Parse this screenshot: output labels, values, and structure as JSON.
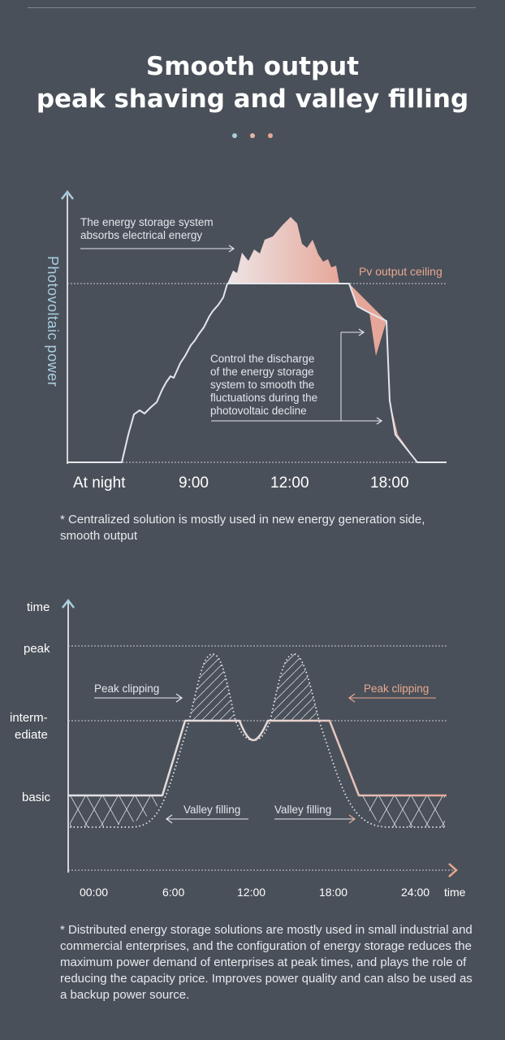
{
  "page": {
    "title_line1": "Smooth output",
    "title_line2": "peak shaving and valley filling",
    "dot_colors": [
      "#a8cde0",
      "#e8b4a4",
      "#e8a890"
    ]
  },
  "colors": {
    "background": "#4a5059",
    "pv_curve": "#dfe3e8",
    "storage_fill_start": "#ede5e6",
    "storage_fill_end": "#e6a79a",
    "salmon": "#e8a890",
    "axis": "#ffffff"
  },
  "chart_data": [
    {
      "type": "area",
      "ylabel": "Photovoltaic power",
      "xlabel": "",
      "x_ticks": [
        "At night",
        "9:00",
        "12:00",
        "18:00"
      ],
      "reference_lines": [
        {
          "label": "Pv output ceiling"
        }
      ],
      "annotations": {
        "absorb": [
          "The energy storage system",
          "absorbs electrical energy"
        ],
        "discharge": [
          "Control the discharge",
          "of the energy storage",
          "system to smooth the",
          "fluctuations during the",
          "photovoltaic decline"
        ]
      },
      "note": "* Centralized solution is mostly used in new energy generation side, smooth output"
    },
    {
      "type": "line",
      "ylabel": "time",
      "xlabel": "time",
      "y_levels": [
        "peak",
        "interm-",
        "ediate",
        "basic"
      ],
      "x_ticks": [
        "00:00",
        "6:00",
        "12:00",
        "18:00",
        "24:00"
      ],
      "labels": {
        "peak_left": "Peak clipping",
        "peak_right": "Peak clipping",
        "valley_left": "Valley filling",
        "valley_right": "Valley filling"
      },
      "series": [
        {
          "name": "Peak clipping",
          "type": "area"
        },
        {
          "name": "Valley filling",
          "type": "area"
        }
      ],
      "note": "* Distributed energy storage solutions are mostly used in small industrial and commercial enterprises, and the configuration of energy storage reduces the maximum power demand of enterprises at peak times, and plays the role of reducing the capacity price. Improves power quality and can also be used as a backup power source."
    }
  ]
}
